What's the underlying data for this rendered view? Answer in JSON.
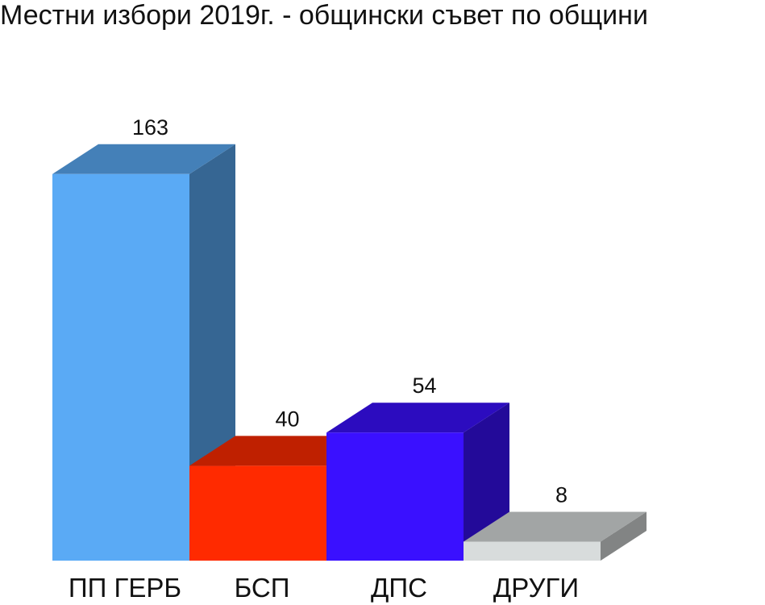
{
  "chart_data": {
    "type": "bar3d",
    "title": "Местни избори 2019г. - общински съвет по общини",
    "categories": [
      "ПП ГЕРБ",
      "БСП",
      "ДПС",
      "ДРУГИ"
    ],
    "values": [
      163,
      40,
      54,
      8
    ],
    "colors": [
      "#5aaaf5",
      "#ff2a00",
      "#3a10ff",
      "#d8dcdc"
    ]
  }
}
